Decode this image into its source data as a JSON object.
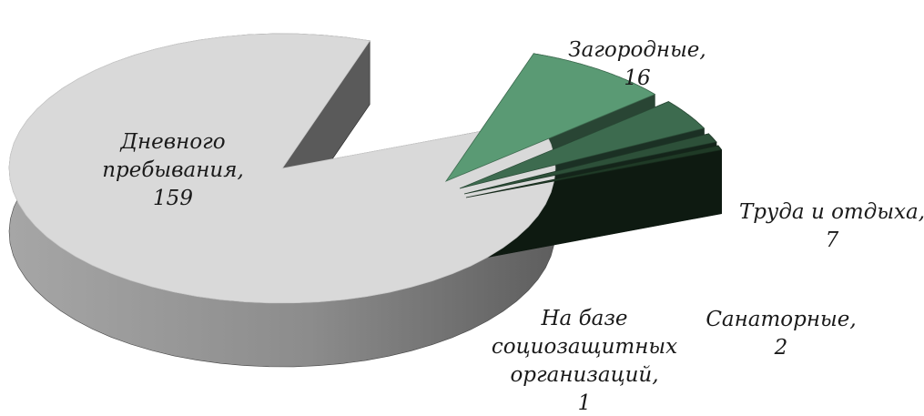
{
  "chart_data": {
    "type": "pie",
    "style": "3d-exploded",
    "title": "",
    "slices": [
      {
        "label_lines": [
          "Дневного",
          "пребывания,",
          "159"
        ],
        "name": "Дневного пребывания",
        "value": 159,
        "color": "#d9d9d9"
      },
      {
        "label_lines": [
          "Загородные,",
          "16"
        ],
        "name": "Загородные",
        "value": 16,
        "color": "#5a9a74"
      },
      {
        "label_lines": [
          "Труда и отдыха,",
          "7"
        ],
        "name": "Труда и отдыха",
        "value": 7,
        "color": "#3d6b4f"
      },
      {
        "label_lines": [
          "Санаторные,",
          "2"
        ],
        "name": "Санаторные",
        "value": 2,
        "color": "#2d5039"
      },
      {
        "label_lines": [
          "На базе",
          "социозащитных",
          "организаций,",
          "1"
        ],
        "name": "На базе социозащитных организаций",
        "value": 1,
        "color": "#1f3a26"
      }
    ]
  }
}
